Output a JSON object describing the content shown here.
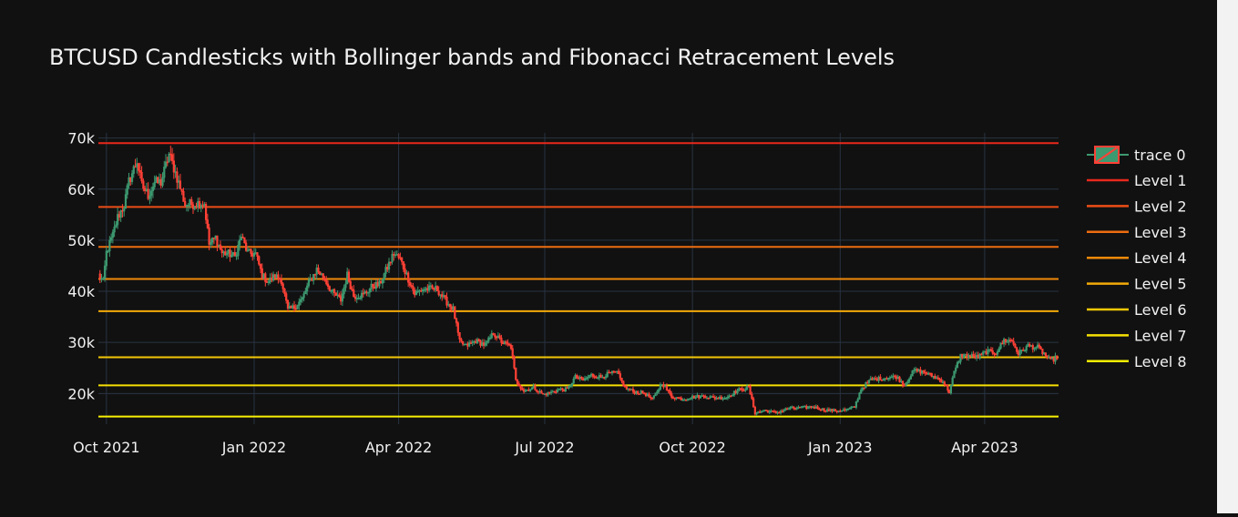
{
  "chart_data": {
    "type": "candlestick",
    "title": "BTCUSD Candlesticks with Bollinger bands and Fibonacci Retracement Levels",
    "xlabel": "",
    "ylabel": "",
    "x_range": [
      "2021-09-26",
      "2023-05-17"
    ],
    "ylim": [
      14000,
      71000
    ],
    "x_ticks": [
      {
        "date": "2021-10-01",
        "label": "Oct 2021"
      },
      {
        "date": "2022-01-01",
        "label": "Jan 2022"
      },
      {
        "date": "2022-04-01",
        "label": "Apr 2022"
      },
      {
        "date": "2022-07-01",
        "label": "Jul 2022"
      },
      {
        "date": "2022-10-01",
        "label": "Oct 2022"
      },
      {
        "date": "2023-01-01",
        "label": "Jan 2023"
      },
      {
        "date": "2023-04-01",
        "label": "Apr 2023"
      }
    ],
    "y_ticks": [
      {
        "value": 20000,
        "label": "20k"
      },
      {
        "value": 30000,
        "label": "30k"
      },
      {
        "value": 40000,
        "label": "40k"
      },
      {
        "value": 50000,
        "label": "50k"
      },
      {
        "value": 60000,
        "label": "60k"
      },
      {
        "value": 70000,
        "label": "70k"
      }
    ],
    "grid": true,
    "legend_position": "right",
    "increasing_color": "#3d9970",
    "decreasing_color": "#ff4136",
    "candle_trace_name": "trace 0",
    "close_path": [
      [
        "2021-09-26",
        43200
      ],
      [
        "2021-09-29",
        41800
      ],
      [
        "2021-10-01",
        47600
      ],
      [
        "2021-10-05",
        51000
      ],
      [
        "2021-10-08",
        54500
      ],
      [
        "2021-10-12",
        56800
      ],
      [
        "2021-10-15",
        61500
      ],
      [
        "2021-10-20",
        65500
      ],
      [
        "2021-10-23",
        60800
      ],
      [
        "2021-10-27",
        58800
      ],
      [
        "2021-10-31",
        61300
      ],
      [
        "2021-11-04",
        61300
      ],
      [
        "2021-11-09",
        66800
      ],
      [
        "2021-11-12",
        64200
      ],
      [
        "2021-11-16",
        60200
      ],
      [
        "2021-11-19",
        57000
      ],
      [
        "2021-11-24",
        57100
      ],
      [
        "2021-11-28",
        57300
      ],
      [
        "2021-12-01",
        57200
      ],
      [
        "2021-12-04",
        49200
      ],
      [
        "2021-12-08",
        50500
      ],
      [
        "2021-12-12",
        47500
      ],
      [
        "2021-12-16",
        47400
      ],
      [
        "2021-12-20",
        46800
      ],
      [
        "2021-12-24",
        50800
      ],
      [
        "2021-12-28",
        47500
      ],
      [
        "2022-01-02",
        47300
      ],
      [
        "2022-01-06",
        43100
      ],
      [
        "2022-01-10",
        41900
      ],
      [
        "2022-01-14",
        43000
      ],
      [
        "2022-01-18",
        42200
      ],
      [
        "2022-01-22",
        36300
      ],
      [
        "2022-01-26",
        36900
      ],
      [
        "2022-01-31",
        38500
      ],
      [
        "2022-02-04",
        41600
      ],
      [
        "2022-02-09",
        44300
      ],
      [
        "2022-02-14",
        42400
      ],
      [
        "2022-02-18",
        40000
      ],
      [
        "2022-02-24",
        38300
      ],
      [
        "2022-02-28",
        43200
      ],
      [
        "2022-03-04",
        39100
      ],
      [
        "2022-03-10",
        39300
      ],
      [
        "2022-03-16",
        41100
      ],
      [
        "2022-03-20",
        41300
      ],
      [
        "2022-03-24",
        44000
      ],
      [
        "2022-03-29",
        47400
      ],
      [
        "2022-04-02",
        46300
      ],
      [
        "2022-04-06",
        43200
      ],
      [
        "2022-04-11",
        39500
      ],
      [
        "2022-04-16",
        40400
      ],
      [
        "2022-04-21",
        40500
      ],
      [
        "2022-04-25",
        40400
      ],
      [
        "2022-04-29",
        38600
      ],
      [
        "2022-05-05",
        36500
      ],
      [
        "2022-05-09",
        30100
      ],
      [
        "2022-05-13",
        29300
      ],
      [
        "2022-05-19",
        30300
      ],
      [
        "2022-05-25",
        29500
      ],
      [
        "2022-05-30",
        31800
      ],
      [
        "2022-06-05",
        29900
      ],
      [
        "2022-06-10",
        29100
      ],
      [
        "2022-06-13",
        22500
      ],
      [
        "2022-06-18",
        20500
      ],
      [
        "2022-06-24",
        21200
      ],
      [
        "2022-06-30",
        19800
      ],
      [
        "2022-07-05",
        20200
      ],
      [
        "2022-07-10",
        20800
      ],
      [
        "2022-07-15",
        20800
      ],
      [
        "2022-07-20",
        23200
      ],
      [
        "2022-07-25",
        22600
      ],
      [
        "2022-07-30",
        23600
      ],
      [
        "2022-08-05",
        23200
      ],
      [
        "2022-08-10",
        23900
      ],
      [
        "2022-08-15",
        24100
      ],
      [
        "2022-08-20",
        21100
      ],
      [
        "2022-08-26",
        20300
      ],
      [
        "2022-09-01",
        20100
      ],
      [
        "2022-09-06",
        18800
      ],
      [
        "2022-09-12",
        22100
      ],
      [
        "2022-09-18",
        19400
      ],
      [
        "2022-09-25",
        18900
      ],
      [
        "2022-10-01",
        19300
      ],
      [
        "2022-10-08",
        19500
      ],
      [
        "2022-10-15",
        19100
      ],
      [
        "2022-10-22",
        19200
      ],
      [
        "2022-10-29",
        20600
      ],
      [
        "2022-11-05",
        21200
      ],
      [
        "2022-11-09",
        16200
      ],
      [
        "2022-11-15",
        16700
      ],
      [
        "2022-11-22",
        16200
      ],
      [
        "2022-11-30",
        17100
      ],
      [
        "2022-12-08",
        17200
      ],
      [
        "2022-12-15",
        17400
      ],
      [
        "2022-12-22",
        16800
      ],
      [
        "2022-12-30",
        16600
      ],
      [
        "2023-01-05",
        16800
      ],
      [
        "2023-01-10",
        17400
      ],
      [
        "2023-01-14",
        20900
      ],
      [
        "2023-01-20",
        22700
      ],
      [
        "2023-01-28",
        23000
      ],
      [
        "2023-02-05",
        23300
      ],
      [
        "2023-02-10",
        21700
      ],
      [
        "2023-02-16",
        24500
      ],
      [
        "2023-02-22",
        24200
      ],
      [
        "2023-02-28",
        23300
      ],
      [
        "2023-03-06",
        22400
      ],
      [
        "2023-03-10",
        20300
      ],
      [
        "2023-03-13",
        24100
      ],
      [
        "2023-03-17",
        27400
      ],
      [
        "2023-03-22",
        27400
      ],
      [
        "2023-03-28",
        27100
      ],
      [
        "2023-04-02",
        28200
      ],
      [
        "2023-04-08",
        28000
      ],
      [
        "2023-04-13",
        30400
      ],
      [
        "2023-04-18",
        30300
      ],
      [
        "2023-04-22",
        27800
      ],
      [
        "2023-04-28",
        29300
      ],
      [
        "2023-05-04",
        29000
      ],
      [
        "2023-05-08",
        27800
      ],
      [
        "2023-05-12",
        26400
      ],
      [
        "2023-05-16",
        27100
      ]
    ],
    "series": [
      {
        "name": "Level 1",
        "value": 69000,
        "color": "#e8291c"
      },
      {
        "name": "Level 2",
        "value": 56500,
        "color": "#ec4d16"
      },
      {
        "name": "Level 3",
        "value": 48700,
        "color": "#ee6d10"
      },
      {
        "name": "Level 4",
        "value": 42400,
        "color": "#f08a0b"
      },
      {
        "name": "Level 5",
        "value": 36100,
        "color": "#f2aa08"
      },
      {
        "name": "Level 6",
        "value": 27100,
        "color": "#f4c806"
      },
      {
        "name": "Level 7",
        "value": 21600,
        "color": "#f6e004"
      },
      {
        "name": "Level 8",
        "value": 15500,
        "color": "#f8f003"
      }
    ]
  }
}
